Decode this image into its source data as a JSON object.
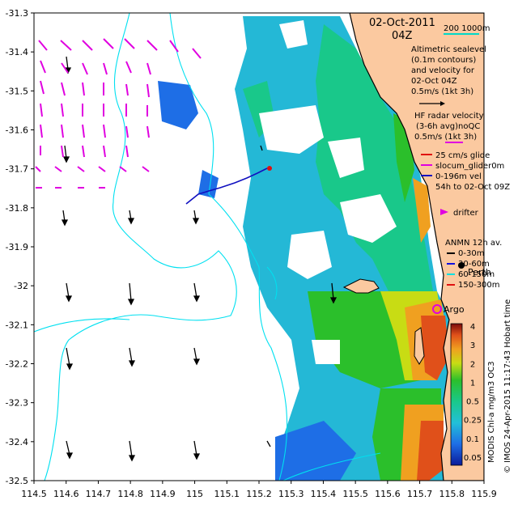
{
  "map": {
    "date_line": "02-Oct-2011",
    "hour_line": "04Z",
    "scale_text": "200 1000m",
    "scale_color": "#00d8c8",
    "sealevel_text": [
      "Altimetric sealevel",
      "(0.1m contours)",
      "and velocity for",
      "02-Oct 04Z",
      "0.5m/s (1kt 3h)"
    ],
    "hfradar_text": [
      "HF radar velocity",
      "(3-6h avg)noQC",
      "0.5m/s (1kt 3h)"
    ],
    "glider_text": [
      "25 cm/s glide",
      "slocum_glider0m",
      "0-196m vel",
      "54h to 02-Oct 09Z"
    ],
    "drifter_text": "drifter",
    "anmn_title": "ANMN 12h av.",
    "anmn_items": [
      {
        "label": "0-30m",
        "color": "#000000"
      },
      {
        "label": "30-60m",
        "color": "#1010e0"
      },
      {
        "label": "60-150m",
        "color": "#00e0e0"
      },
      {
        "label": "150-300m",
        "color": "#e01010"
      }
    ],
    "city_label": "Perth",
    "argo_label": "Argo",
    "x_ticks": [
      "114.5",
      "114.6",
      "114.7",
      "114.8",
      "114.9",
      "115",
      "115.1",
      "115.2",
      "115.3",
      "115.4",
      "115.5",
      "115.6",
      "115.7",
      "115.8",
      "115.9"
    ],
    "y_ticks": [
      "-31.3",
      "-31.4",
      "-31.5",
      "-31.6",
      "-31.7",
      "-31.8",
      "-31.9",
      "-32",
      "-32.1",
      "-32.2",
      "-32.3",
      "-32.4",
      "-32.5"
    ],
    "colorbar_ticks": [
      "4",
      "3",
      "2",
      "1",
      "0.5",
      "0.25",
      "0.1",
      "0.05"
    ],
    "colorbar_label": "MODIS Chl-a mg/m3 OC3",
    "credit": "© IMOS 24-Apr-2015 11:17:43 Hobart time",
    "colors": {
      "land": "#fbc9a0",
      "coast": "#000000",
      "contour": "#00e0f0",
      "hf_arrow": "#e000e0",
      "alt_arrow": "#000000",
      "glider": "#1010c0"
    }
  }
}
